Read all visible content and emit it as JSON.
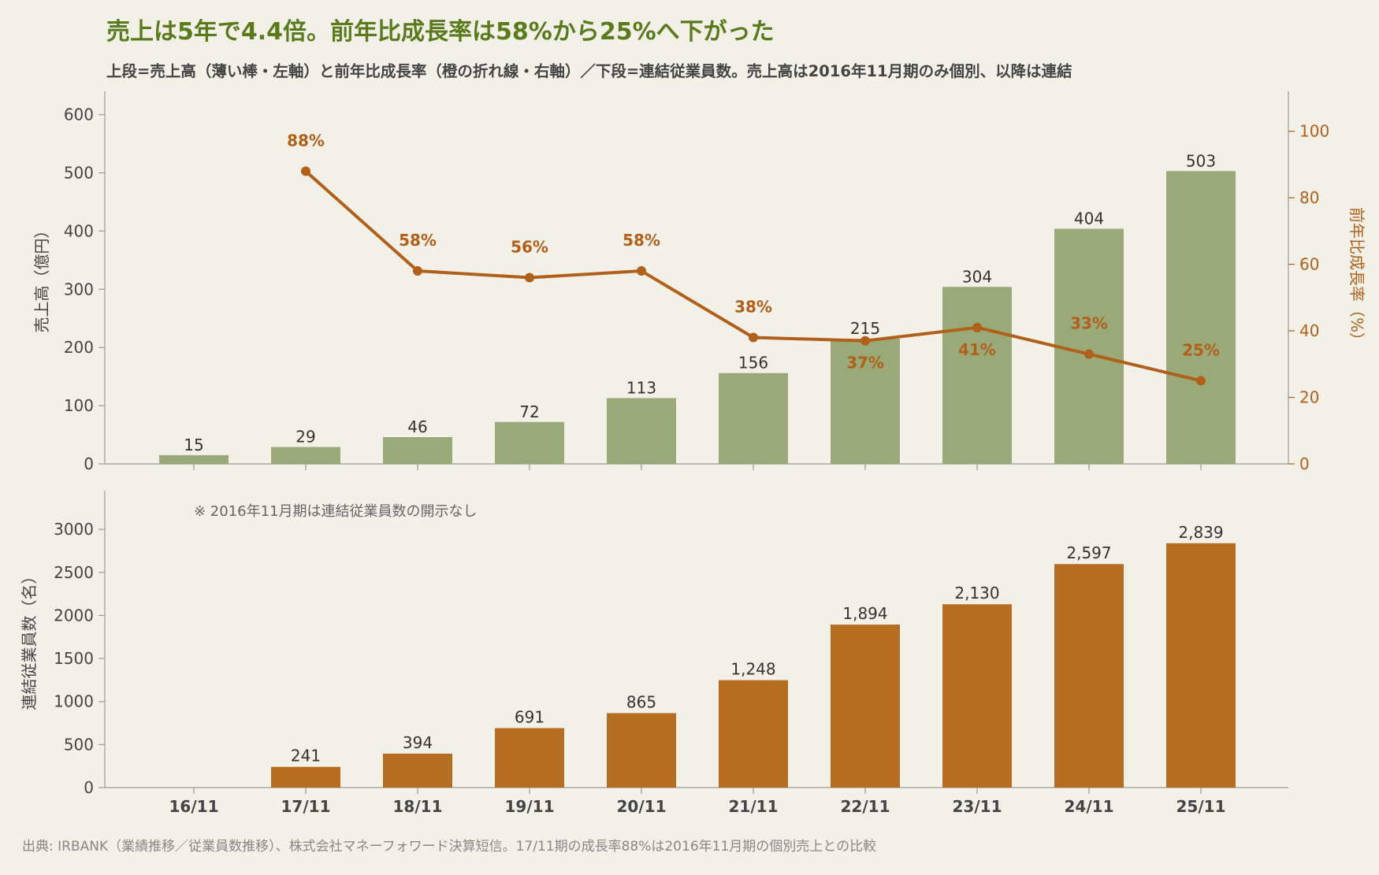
{
  "title": "売上は5年で4.4倍。前年比成長率は58%から25%へ下がった",
  "subtitle": "上段=売上高（薄い棒・左軸）と前年比成長率（橙の折れ線・右軸）／下段=連結従業員数。売上高は2016年11月期のみ個別、以降は連結",
  "note": "※ 2016年11月期は連結従業員数の開示なし",
  "source": "出典: IRBANK（業績推移／従業員数推移）、株式会社マネーフォワード決算短信。17/11期の成長率88%は2016年11月期の個別売上との比較",
  "colors": {
    "background": "#f3f0e8",
    "title": "#5a7a1e",
    "revenue_bar": "#9aa978",
    "growth_line": "#b0601a",
    "employee_bar": "#b56d21",
    "text": "#333333",
    "axis": "#999999"
  },
  "chart_data": [
    {
      "type": "bar",
      "categories": [
        "16/11",
        "17/11",
        "18/11",
        "19/11",
        "20/11",
        "21/11",
        "22/11",
        "23/11",
        "24/11",
        "25/11"
      ],
      "series": [
        {
          "values": [
            15,
            29,
            46,
            72,
            113,
            156,
            215,
            304,
            404,
            503
          ],
          "axis": "left"
        }
      ],
      "ylabel": "売上高（億円）",
      "ylim": [
        0,
        640
      ],
      "yticks": [
        0,
        100,
        200,
        300,
        400,
        500,
        600
      ],
      "overlay_line": {
        "type": "line",
        "axis": "right",
        "values": [
          null,
          88,
          58,
          56,
          58,
          38,
          37,
          41,
          33,
          25
        ],
        "labels": [
          "",
          "88%",
          "58%",
          "56%",
          "58%",
          "38%",
          "37%",
          "41%",
          "33%",
          "25%"
        ],
        "label_position": [
          "",
          "above",
          "above",
          "above",
          "above",
          "above",
          "below",
          "below",
          "above",
          "above"
        ],
        "ylabel": "前年比成長率（%）",
        "ylim": [
          0,
          112
        ],
        "yticks": [
          0,
          20,
          40,
          60,
          80,
          100
        ]
      }
    },
    {
      "type": "bar",
      "categories": [
        "16/11",
        "17/11",
        "18/11",
        "19/11",
        "20/11",
        "21/11",
        "22/11",
        "23/11",
        "24/11",
        "25/11"
      ],
      "series": [
        {
          "values": [
            null,
            241,
            394,
            691,
            865,
            1248,
            1894,
            2130,
            2597,
            2839
          ]
        }
      ],
      "value_labels": [
        "",
        "241",
        "394",
        "691",
        "865",
        "1,248",
        "1,894",
        "2,130",
        "2,597",
        "2,839"
      ],
      "ylabel": "連結従業員数（名）",
      "ylim": [
        0,
        3450
      ],
      "yticks": [
        0,
        500,
        1000,
        1500,
        2000,
        2500,
        3000
      ]
    }
  ]
}
